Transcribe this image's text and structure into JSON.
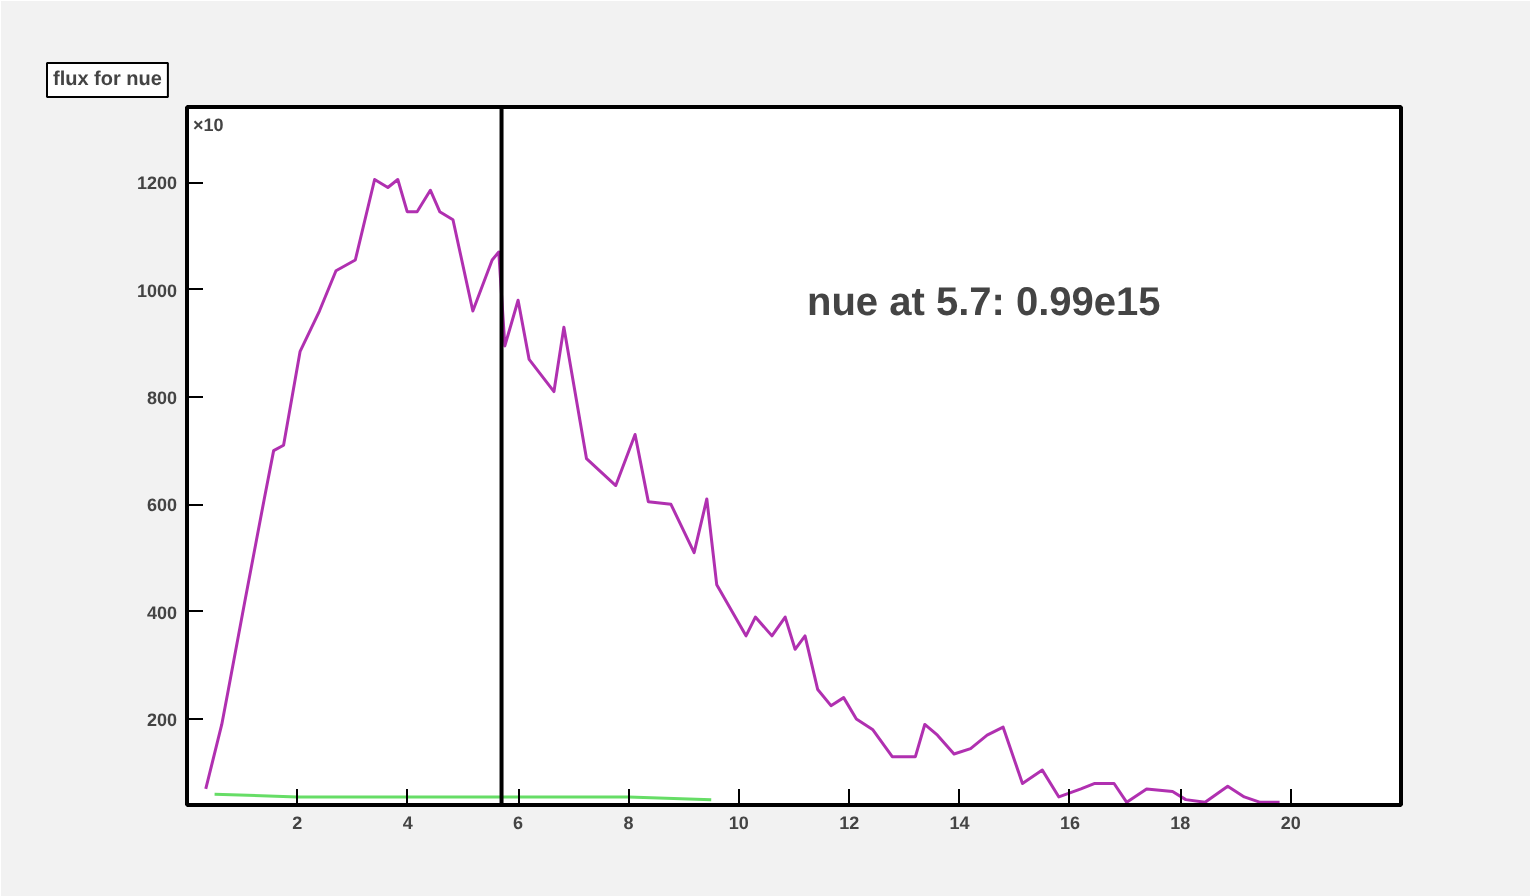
{
  "chart_data": {
    "type": "line",
    "title": "flux for nue",
    "annotations": [
      "nue at 5.7: 0.99e15",
      "×10"
    ],
    "series": [
      {
        "color": "#b030b0",
        "x": [
          0.34,
          0.63,
          0.75,
          1.04,
          1.4,
          1.57,
          1.75,
          2.05,
          2.4,
          2.7,
          3.05,
          3.4,
          3.64,
          3.82,
          3.99,
          4.17,
          4.41,
          4.58,
          4.82,
          5.18,
          5.53,
          5.65,
          5.76,
          6.0,
          6.2,
          6.65,
          6.83,
          7.24,
          7.77,
          8.12,
          8.36,
          8.77,
          9.19,
          9.42,
          9.6,
          10.13,
          10.3,
          10.6,
          10.84,
          11.02,
          11.2,
          11.43,
          11.67,
          11.9,
          12.13,
          12.43,
          12.78,
          13.2,
          13.37,
          13.6,
          13.9,
          14.2,
          14.5,
          14.79,
          15.14,
          15.5,
          15.8,
          16.2,
          16.44,
          16.8,
          17.03,
          17.39,
          17.86,
          18.1,
          18.45,
          18.86,
          19.16,
          19.45,
          19.8
        ],
        "values": [
          70,
          190,
          255,
          415,
          610,
          700,
          710,
          885,
          960,
          1035,
          1055,
          1205,
          1190,
          1205,
          1145,
          1145,
          1185,
          1145,
          1130,
          960,
          1055,
          1070,
          895,
          980,
          870,
          810,
          930,
          685,
          635,
          730,
          605,
          600,
          510,
          610,
          450,
          355,
          390,
          355,
          390,
          330,
          355,
          255,
          225,
          240,
          200,
          180,
          130,
          130,
          190,
          170,
          135,
          145,
          170,
          185,
          80,
          105,
          55,
          70,
          80,
          80,
          45,
          70,
          65,
          50,
          45,
          75,
          55,
          45,
          45
        ]
      },
      {
        "color": "#66dd66",
        "x": [
          0.5,
          2,
          4,
          6,
          8,
          9.5
        ],
        "values": [
          60,
          55,
          55,
          55,
          55,
          50
        ]
      }
    ],
    "xlim": [
      0,
      22
    ],
    "xticks": [
      2,
      4,
      6,
      8,
      10,
      12,
      14,
      16,
      18,
      20
    ],
    "ylim": [
      40,
      1340
    ],
    "yticks": [
      200,
      400,
      600,
      800,
      1000,
      1200
    ],
    "ref_lines": [
      {
        "axis": "x",
        "value": 5.7,
        "color": "#000000"
      }
    ],
    "grid": false,
    "marker": "none",
    "line_style": "solid"
  }
}
